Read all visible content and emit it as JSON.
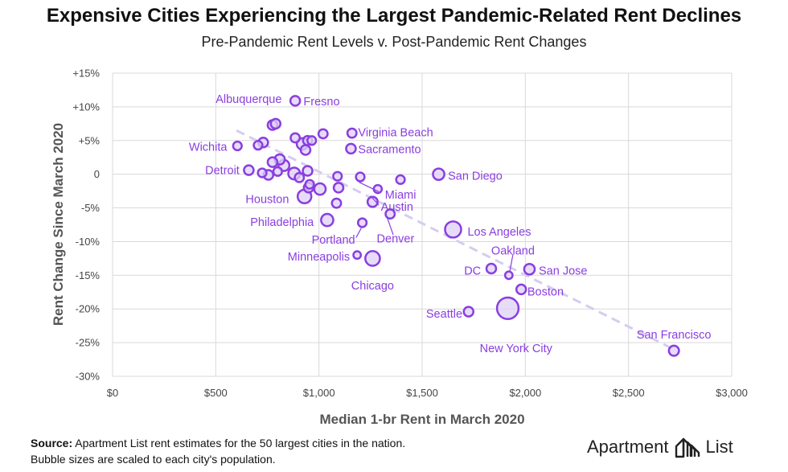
{
  "header": {
    "title": "Expensive Cities Experiencing the Largest Pandemic-Related Rent Declines",
    "subtitle": "Pre-Pandemic Rent Levels v. Post-Pandemic Rent Changes"
  },
  "footer": {
    "source_label": "Source:",
    "source_text": "Apartment List rent estimates for the 50 largest cities in the nation.",
    "note": "Bubble sizes are scaled to each city's population."
  },
  "logo": {
    "word1": "Apartment",
    "word2": "List",
    "icon": "apartment-list-logo-icon"
  },
  "colors": {
    "bubble_fill": "#ddd0f5",
    "bubble_stroke": "#8a3ee0",
    "trend": "#d6ccf0",
    "label": "#8a3ee0",
    "grid": "#d9d9d9"
  },
  "chart_data": {
    "type": "scatter",
    "title": "Expensive Cities Experiencing the Largest Pandemic-Related Rent Declines",
    "subtitle": "Pre-Pandemic Rent Levels v. Post-Pandemic Rent Changes",
    "xlabel": "Median 1-br Rent in March 2020",
    "ylabel": "Rent Change Since March 2020",
    "xlim": [
      0,
      3000
    ],
    "ylim": [
      -30,
      15
    ],
    "x_ticks": [
      0,
      500,
      1000,
      1500,
      2000,
      2500,
      3000
    ],
    "x_tick_labels": [
      "$0",
      "$500",
      "$1,000",
      "$1,500",
      "$2,000",
      "$2,500",
      "$3,000"
    ],
    "y_ticks": [
      15,
      10,
      5,
      0,
      -5,
      -10,
      -15,
      -20,
      -25,
      -30
    ],
    "y_tick_labels": [
      "+15%",
      "+10%",
      "+5%",
      "0",
      "-5%",
      "-10%",
      "-15%",
      "-20%",
      "-25%",
      "-30%"
    ],
    "grid": true,
    "trendline": {
      "x": [
        600,
        2720
      ],
      "y": [
        6.5,
        -26
      ]
    },
    "points": [
      {
        "label": "Albuquerque",
        "x": 775,
        "y": 7.3,
        "size": 1.0
      },
      {
        "label": "",
        "x": 790,
        "y": 7.5,
        "size": 1.0
      },
      {
        "label": "Fresno",
        "x": 885,
        "y": 10.9,
        "size": 1.0
      },
      {
        "label": "Virginia Beach",
        "x": 1160,
        "y": 6.1,
        "size": 0.9
      },
      {
        "label": "Sacramento",
        "x": 1155,
        "y": 3.8,
        "size": 1.0
      },
      {
        "label": "Wichita",
        "x": 605,
        "y": 4.2,
        "size": 0.8
      },
      {
        "label": "",
        "x": 705,
        "y": 4.3,
        "size": 0.8
      },
      {
        "label": "",
        "x": 730,
        "y": 4.7,
        "size": 1.0
      },
      {
        "label": "",
        "x": 885,
        "y": 5.4,
        "size": 0.9
      },
      {
        "label": "",
        "x": 920,
        "y": 4.5,
        "size": 1.4
      },
      {
        "label": "",
        "x": 945,
        "y": 5.0,
        "size": 0.9
      },
      {
        "label": "",
        "x": 965,
        "y": 5.0,
        "size": 0.8
      },
      {
        "label": "",
        "x": 935,
        "y": 3.6,
        "size": 1.0
      },
      {
        "label": "",
        "x": 1020,
        "y": 6.0,
        "size": 0.9
      },
      {
        "label": "Detroit",
        "x": 660,
        "y": 0.6,
        "size": 1.0
      },
      {
        "label": "",
        "x": 725,
        "y": 0.2,
        "size": 0.8
      },
      {
        "label": "",
        "x": 755,
        "y": -0.1,
        "size": 1.0
      },
      {
        "label": "",
        "x": 775,
        "y": 1.8,
        "size": 1.0
      },
      {
        "label": "",
        "x": 810,
        "y": 2.2,
        "size": 1.1
      },
      {
        "label": "",
        "x": 830,
        "y": 1.3,
        "size": 1.3
      },
      {
        "label": "",
        "x": 800,
        "y": 0.4,
        "size": 0.8
      },
      {
        "label": "",
        "x": 880,
        "y": 0.1,
        "size": 1.5
      },
      {
        "label": "",
        "x": 905,
        "y": -0.5,
        "size": 0.9
      },
      {
        "label": "",
        "x": 945,
        "y": 0.5,
        "size": 1.0
      },
      {
        "label": "",
        "x": 955,
        "y": -1.5,
        "size": 0.8
      },
      {
        "label": "",
        "x": 950,
        "y": -2.0,
        "size": 1.0
      },
      {
        "label": "",
        "x": 1005,
        "y": -2.2,
        "size": 1.4
      },
      {
        "label": "",
        "x": 1090,
        "y": -0.3,
        "size": 0.8
      },
      {
        "label": "",
        "x": 1095,
        "y": -2.0,
        "size": 1.0
      },
      {
        "label": "",
        "x": 1085,
        "y": -4.3,
        "size": 0.9
      },
      {
        "label": "",
        "x": 1200,
        "y": -0.4,
        "size": 0.8
      },
      {
        "label": "Houston",
        "x": 930,
        "y": -3.3,
        "size": 2.0
      },
      {
        "label": "Miami",
        "x": 1285,
        "y": -2.2,
        "size": 0.7
      },
      {
        "label": "",
        "x": 1395,
        "y": -0.8,
        "size": 0.8
      },
      {
        "label": "San Diego",
        "x": 1580,
        "y": 0.0,
        "size": 1.4
      },
      {
        "label": "Austin",
        "x": 1260,
        "y": -4.1,
        "size": 1.1
      },
      {
        "label": "Denver",
        "x": 1345,
        "y": -5.9,
        "size": 0.9
      },
      {
        "label": "Philadelphia",
        "x": 1040,
        "y": -6.8,
        "size": 1.6
      },
      {
        "label": "Portland",
        "x": 1210,
        "y": -7.2,
        "size": 0.8
      },
      {
        "label": "Los Angeles",
        "x": 1650,
        "y": -8.2,
        "size": 2.8
      },
      {
        "label": "Minneapolis",
        "x": 1185,
        "y": -12.0,
        "size": 0.6
      },
      {
        "label": "Chicago",
        "x": 1260,
        "y": -12.5,
        "size": 2.3
      },
      {
        "label": "DC",
        "x": 1835,
        "y": -14.0,
        "size": 1.0
      },
      {
        "label": "Oakland",
        "x": 1920,
        "y": -15.0,
        "size": 0.6
      },
      {
        "label": "San Jose",
        "x": 2020,
        "y": -14.1,
        "size": 1.2
      },
      {
        "label": "Boston",
        "x": 1980,
        "y": -17.1,
        "size": 1.0
      },
      {
        "label": "Seattle",
        "x": 1725,
        "y": -20.4,
        "size": 1.0
      },
      {
        "label": "New York City",
        "x": 1915,
        "y": -19.9,
        "size": 5.0
      },
      {
        "label": "San Francisco",
        "x": 2720,
        "y": -26.2,
        "size": 1.1
      }
    ],
    "annotations": [
      {
        "text": "Albuquerque",
        "x": 820,
        "y": 11.2,
        "anchor": "end"
      },
      {
        "text": "Fresno",
        "x": 925,
        "y": 10.8,
        "anchor": "start"
      },
      {
        "text": "Virginia Beach",
        "x": 1190,
        "y": 6.2,
        "anchor": "start"
      },
      {
        "text": "Sacramento",
        "x": 1190,
        "y": 3.7,
        "anchor": "start"
      },
      {
        "text": "Wichita",
        "x": 555,
        "y": 4.1,
        "anchor": "end"
      },
      {
        "text": "Detroit",
        "x": 615,
        "y": 0.6,
        "anchor": "end"
      },
      {
        "text": "Houston",
        "x": 855,
        "y": -3.7,
        "anchor": "end"
      },
      {
        "text": "Miami",
        "x": 1320,
        "y": -3.0,
        "anchor": "start"
      },
      {
        "text": "San Diego",
        "x": 1625,
        "y": -0.2,
        "anchor": "start"
      },
      {
        "text": "Austin",
        "x": 1300,
        "y": -4.8,
        "anchor": "start"
      },
      {
        "text": "Denver",
        "x": 1280,
        "y": -9.5,
        "anchor": "start"
      },
      {
        "text": "Philadelphia",
        "x": 975,
        "y": -7.1,
        "anchor": "end"
      },
      {
        "text": "Portland",
        "x": 1175,
        "y": -9.7,
        "anchor": "end"
      },
      {
        "text": "Los Angeles",
        "x": 1720,
        "y": -8.5,
        "anchor": "start"
      },
      {
        "text": "Minneapolis",
        "x": 1150,
        "y": -12.2,
        "anchor": "end"
      },
      {
        "text": "Chicago",
        "x": 1260,
        "y": -16.5,
        "anchor": "middle"
      },
      {
        "text": "DC",
        "x": 1785,
        "y": -14.3,
        "anchor": "end"
      },
      {
        "text": "Oakland",
        "x": 1940,
        "y": -11.3,
        "anchor": "middle"
      },
      {
        "text": "San Jose",
        "x": 2065,
        "y": -14.3,
        "anchor": "start"
      },
      {
        "text": "Boston",
        "x": 2010,
        "y": -17.4,
        "anchor": "start"
      },
      {
        "text": "Seattle",
        "x": 1695,
        "y": -20.7,
        "anchor": "end"
      },
      {
        "text": "New York City",
        "x": 1955,
        "y": -25.8,
        "anchor": "middle"
      },
      {
        "text": "San Francisco",
        "x": 2720,
        "y": -23.8,
        "anchor": "middle"
      }
    ],
    "callouts": [
      {
        "from": [
          1195,
          -1.2
        ],
        "to": [
          1290,
          -2.6
        ]
      },
      {
        "from": [
          1250,
          -3.2
        ],
        "to": [
          1290,
          -4.6
        ]
      },
      {
        "from": [
          1330,
          -6.4
        ],
        "to": [
          1360,
          -9.0
        ]
      },
      {
        "from": [
          1205,
          -8.0
        ],
        "to": [
          1180,
          -9.4
        ]
      },
      {
        "from": [
          1925,
          -14.4
        ],
        "to": [
          1940,
          -11.9
        ]
      }
    ]
  }
}
